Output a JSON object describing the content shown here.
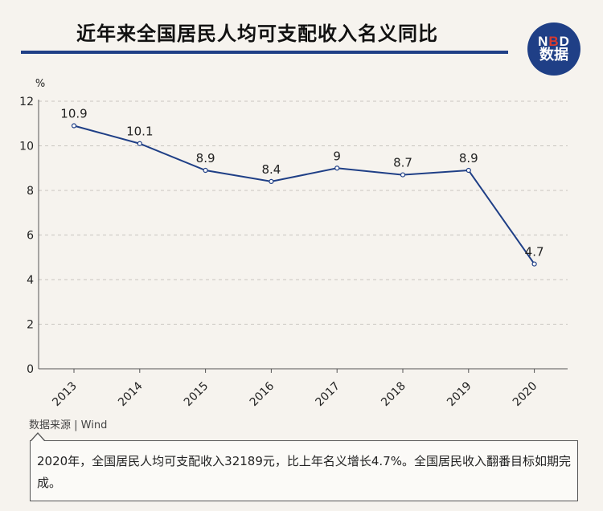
{
  "header": {
    "title": "近年来全国居民人均可支配收入名义同比",
    "logo_top": "NBD",
    "logo_bottom": "数据"
  },
  "chart_data": {
    "type": "line",
    "title": "近年来全国居民人均可支配收入名义同比",
    "xlabel": "",
    "ylabel": "%",
    "ylim": [
      0,
      12
    ],
    "yticks": [
      0,
      2,
      4,
      6,
      8,
      10,
      12
    ],
    "grid": true,
    "categories": [
      "2013",
      "2014",
      "2015",
      "2016",
      "2017",
      "2018",
      "2019",
      "2020"
    ],
    "series": [
      {
        "values": [
          10.9,
          10.1,
          8.9,
          8.4,
          9,
          8.7,
          8.9,
          4.7
        ],
        "color": "#1f3f86"
      }
    ],
    "data_labels": [
      "10.9",
      "10.1",
      "8.9",
      "8.4",
      "9",
      "8.7",
      "8.9",
      "4.7"
    ]
  },
  "footer": {
    "source": "数据来源 | Wind",
    "note": "2020年，全国居民人均可支配收入32189元，比上年名义增长4.7%。全国居民收入翻番目标如期完成。"
  },
  "colors": {
    "accent": "#1f3f86",
    "background": "#f6f3ee",
    "logo_red": "#d83a2e"
  }
}
